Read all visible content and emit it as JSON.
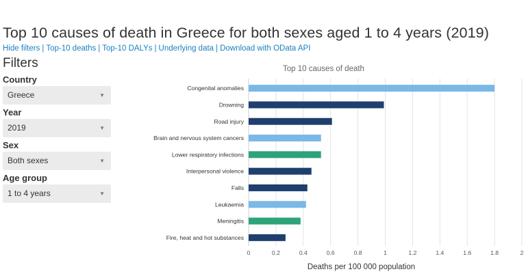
{
  "page": {
    "title": "Top 10 causes of death in Greece for both sexes aged 1 to 4 years (2019)"
  },
  "links": [
    {
      "label": "Hide filters"
    },
    {
      "label": "Top-10 deaths"
    },
    {
      "label": "Top-10 DALYs"
    },
    {
      "label": "Underlying data"
    },
    {
      "label": "Download with OData API"
    }
  ],
  "link_separator": "|",
  "filters": {
    "heading": "Filters",
    "country": {
      "label": "Country",
      "value": "Greece"
    },
    "year": {
      "label": "Year",
      "value": "2019"
    },
    "sex": {
      "label": "Sex",
      "value": "Both sexes"
    },
    "age_group": {
      "label": "Age group",
      "value": "1 to 4 years"
    }
  },
  "icons": {
    "dropdown": "caret-down-icon"
  },
  "colors": {
    "link": "#1a7fc1",
    "communicable": "#2ea37a",
    "noncommunicable": "#7ab8e6",
    "injuries": "#1f3f6e"
  },
  "chart_data": {
    "type": "bar",
    "orientation": "horizontal",
    "title": "Top 10 causes of death",
    "xlabel": "Deaths per 100 000 population",
    "ylabel": "",
    "xlim": [
      0,
      2
    ],
    "xticks": [
      "0",
      "0.2",
      "0.4",
      "0.6",
      "0.8",
      "1",
      "1.2",
      "1.4",
      "1.6",
      "1.8",
      "2"
    ],
    "grid": true,
    "categories": [
      "Congenital anomalies",
      "Drowning",
      "Road injury",
      "Brain and nervous system cancers",
      "Lower respiratory infections",
      "Interpersonal violence",
      "Falls",
      "Leukaemia",
      "Meningitis",
      "Fire, heat and hot substances"
    ],
    "values": [
      1.8,
      0.99,
      0.61,
      0.53,
      0.53,
      0.46,
      0.43,
      0.42,
      0.38,
      0.27
    ],
    "bar_colors": [
      "#7ab8e6",
      "#1f3f6e",
      "#1f3f6e",
      "#7ab8e6",
      "#2ea37a",
      "#1f3f6e",
      "#1f3f6e",
      "#7ab8e6",
      "#2ea37a",
      "#1f3f6e"
    ]
  }
}
